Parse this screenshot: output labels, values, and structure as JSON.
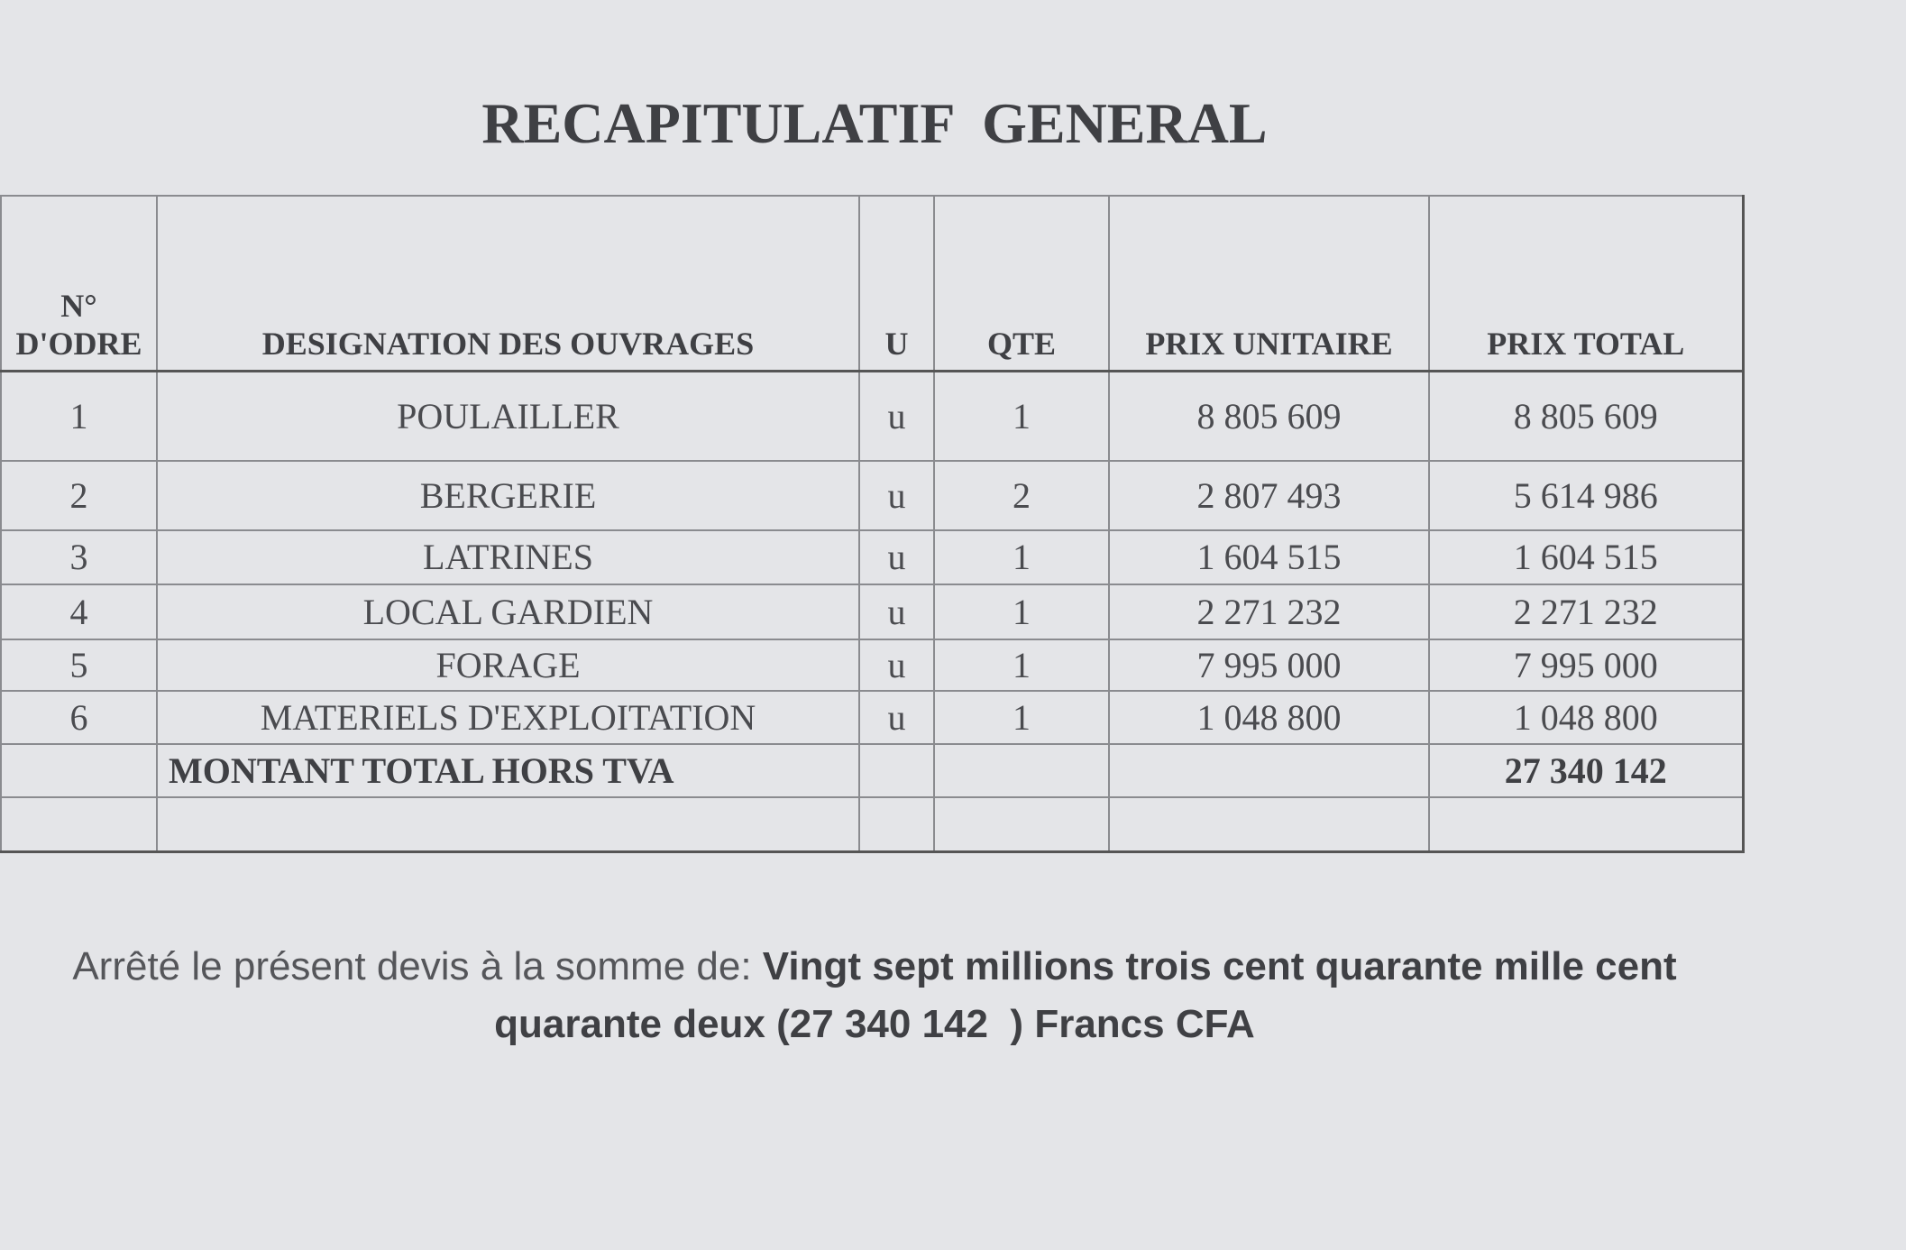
{
  "title": "RECAPITULATIF  GENERAL",
  "table": {
    "header": [
      "N° D'ODRE",
      "DESIGNATION DES OUVRAGES",
      "U",
      "QTE",
      "PRIX UNITAIRE",
      "PRIX TOTAL"
    ],
    "rows": [
      [
        "1",
        "POULAILLER",
        "u",
        "1",
        "8 805 609",
        "8 805 609"
      ],
      [
        "2",
        "BERGERIE",
        "u",
        "2",
        "2 807 493",
        "5 614 986"
      ],
      [
        "3",
        "LATRINES",
        "u",
        "1",
        "1 604 515",
        "1 604 515"
      ],
      [
        "4",
        "LOCAL GARDIEN",
        "u",
        "1",
        "2 271 232",
        "2 271 232"
      ],
      [
        "5",
        "FORAGE",
        "u",
        "1",
        "7 995 000",
        "7 995 000"
      ],
      [
        "6",
        "MATERIELS D'EXPLOITATION",
        "u",
        "1",
        "1 048 800",
        "1 048 800"
      ]
    ],
    "total": {
      "label": "MONTANT TOTAL HORS TVA",
      "value": "27 340 142"
    }
  },
  "footer": [
    "Arrêté le présent devis à la somme de: ",
    "Vingt sept millions trois cent quarante mille cent quarante deux (27 340 142  ) Francs CFA"
  ]
}
